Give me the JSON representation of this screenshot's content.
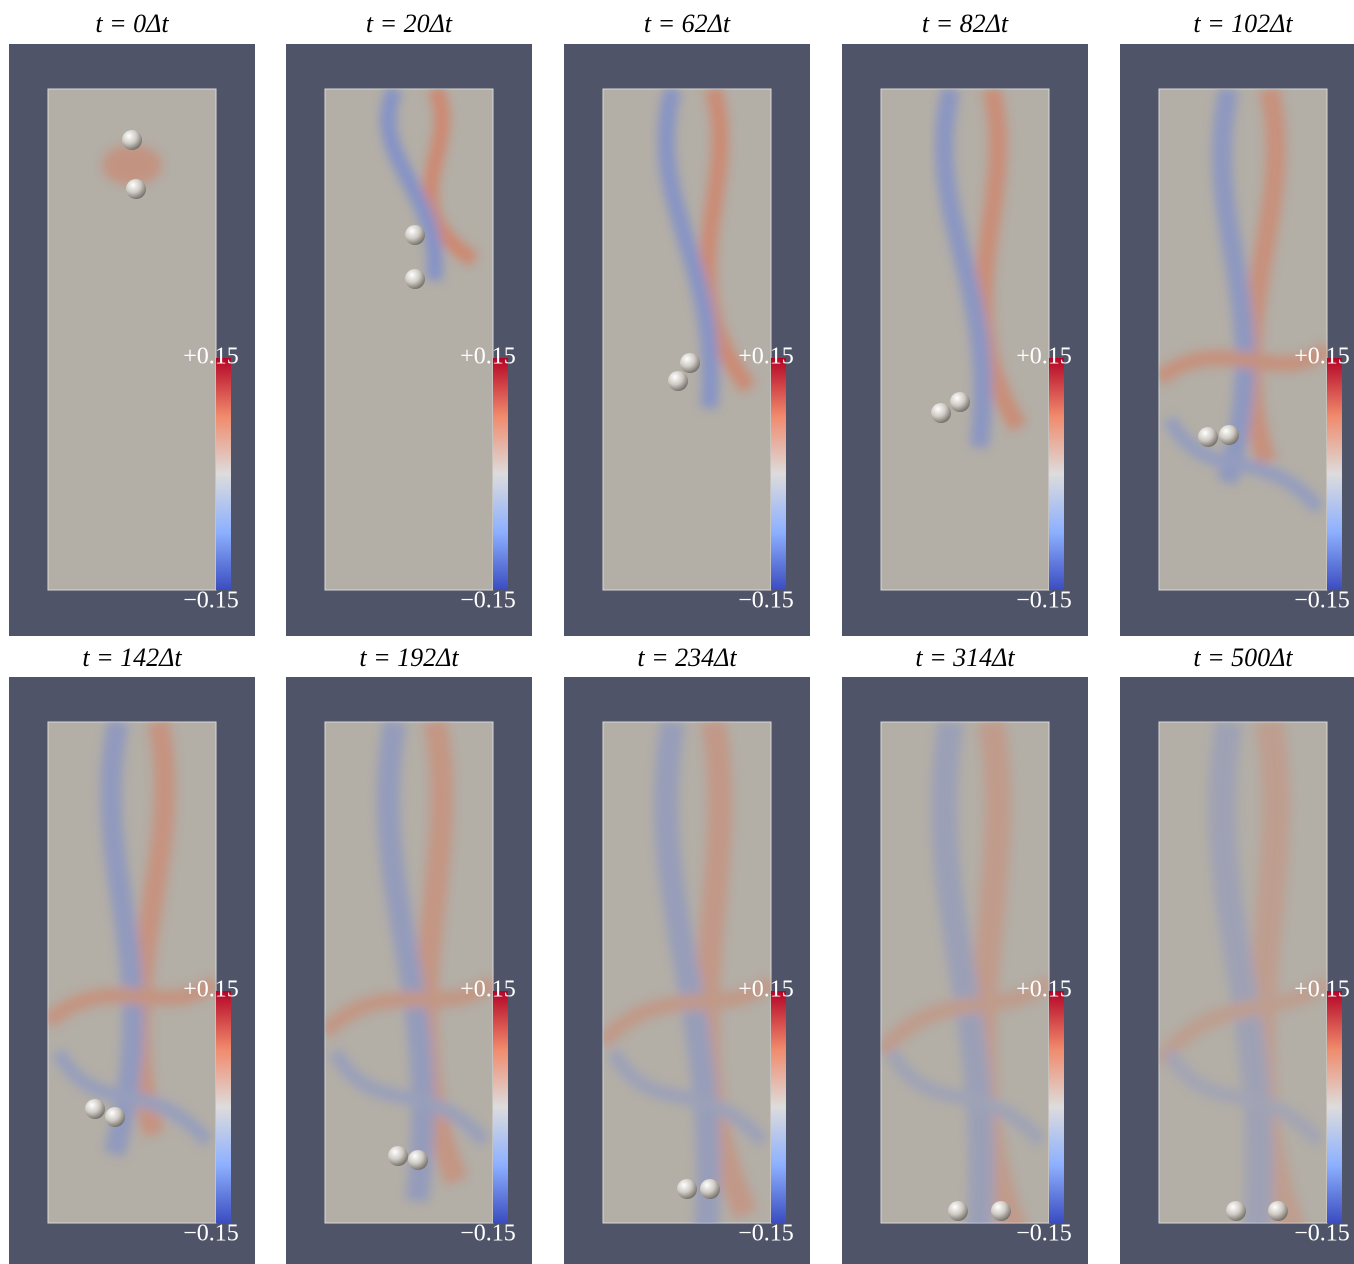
{
  "panels": [
    {
      "title": "t = 0Δt",
      "colorbar": {
        "max_label": "+0.15",
        "min_label": "−0.15"
      }
    },
    {
      "title": "t = 20Δt",
      "colorbar": {
        "max_label": "+0.15",
        "min_label": "−0.15"
      }
    },
    {
      "title": "t = 62Δt",
      "colorbar": {
        "max_label": "+0.15",
        "min_label": "−0.15"
      }
    },
    {
      "title": "t = 82Δt",
      "colorbar": {
        "max_label": "+0.15",
        "min_label": "−0.15"
      }
    },
    {
      "title": "t = 102Δt",
      "colorbar": {
        "max_label": "+0.15",
        "min_label": "−0.15"
      }
    },
    {
      "title": "t = 142Δt",
      "colorbar": {
        "max_label": "+0.15",
        "min_label": "−0.15"
      }
    },
    {
      "title": "t = 192Δt",
      "colorbar": {
        "max_label": "+0.15",
        "min_label": "−0.15"
      }
    },
    {
      "title": "t = 234Δt",
      "colorbar": {
        "max_label": "+0.15",
        "min_label": "−0.15"
      }
    },
    {
      "title": "t = 314Δt",
      "colorbar": {
        "max_label": "+0.15",
        "min_label": "−0.15"
      }
    },
    {
      "title": "t = 500Δt",
      "colorbar": {
        "max_label": "+0.15",
        "min_label": "−0.15"
      }
    }
  ]
}
